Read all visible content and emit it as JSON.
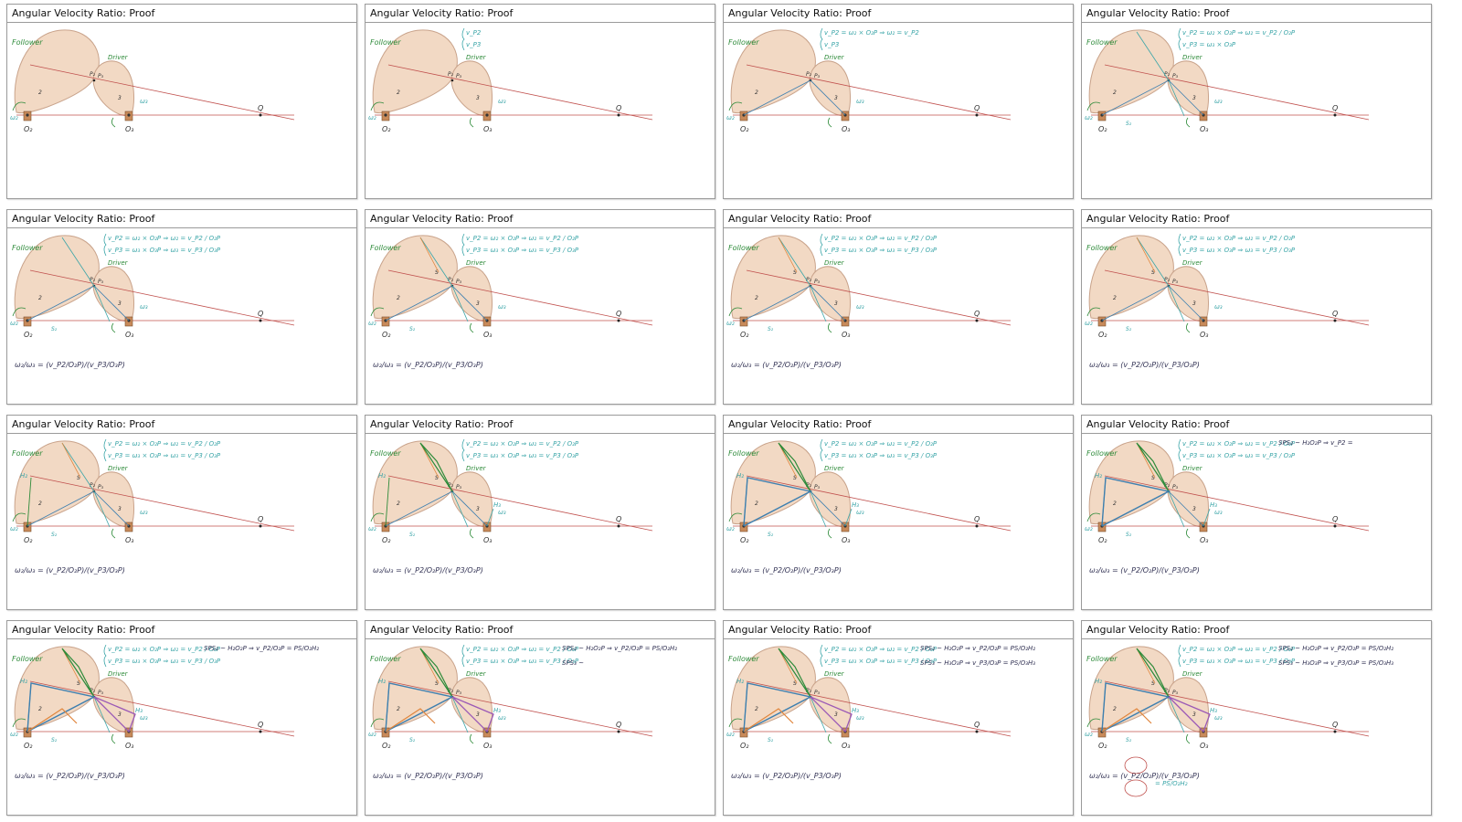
{
  "slide_title": "Angular Velocity Ratio: Proof",
  "colors": {
    "link_fill": "#f2d9c4",
    "link_stroke": "#c9a38b",
    "red_line": "#c0504d",
    "teal": "#3aa5a8",
    "green": "#2e8b3a",
    "blue": "#3d7fb0",
    "orange": "#e0843a",
    "purple": "#9b59b6"
  },
  "labels": {
    "follower": "Follower",
    "driver": "Driver",
    "link2": "2",
    "link3": "3",
    "pivot2": "O₂",
    "pivot3": "O₃",
    "point_q": "Q",
    "omega2": "ω₂",
    "omega3": "ω₃",
    "p2": "P₂",
    "p3": "P₃",
    "s2": "S₂",
    "s3": "S₃",
    "h2": "H₂",
    "h3": "H₃",
    "s": "S"
  },
  "equations": {
    "line1_short": "v_P2",
    "line2_short": "v_P3",
    "line1_mid": "v_P2 = ω₂ × O₂P ⇒ ω₂ = v_P2",
    "line1": "v_P2 = ω₂ × O₂P ⇒ ω₂ = v_P2 / O₂P",
    "line2_mid": "v_P3 = ω₃ × O₃P",
    "line2": "v_P3 = ω₃ × O₃P ⇒ ω₃ = v_P3 / O₃P",
    "ratio": "ω₂/ω₃ = (v_P2/O₂P)/(v_P3/O₃P)",
    "sim1_start": "SPS₂ ~ H₂O₂P ⇒ v_P2 =",
    "sim1": "SPS₂ ~ H₂O₂P ⇒ v_P2/O₂P = PS/O₂H₂",
    "sim2_start": "SPS₃ ~",
    "sim2": "SPS₃ ~ H₃O₃P ⇒ v_P3/O₃P = PS/O₃H₃",
    "final": "= PS/O₂H₂"
  },
  "slides": [
    {
      "step": 1
    },
    {
      "step": 2
    },
    {
      "step": 3
    },
    {
      "step": 4
    },
    {
      "step": 5
    },
    {
      "step": 6
    },
    {
      "step": 7
    },
    {
      "step": 8
    },
    {
      "step": 9
    },
    {
      "step": 10
    },
    {
      "step": 11
    },
    {
      "step": 12
    },
    {
      "step": 13
    },
    {
      "step": 14
    },
    {
      "step": 15
    },
    {
      "step": 16
    }
  ]
}
